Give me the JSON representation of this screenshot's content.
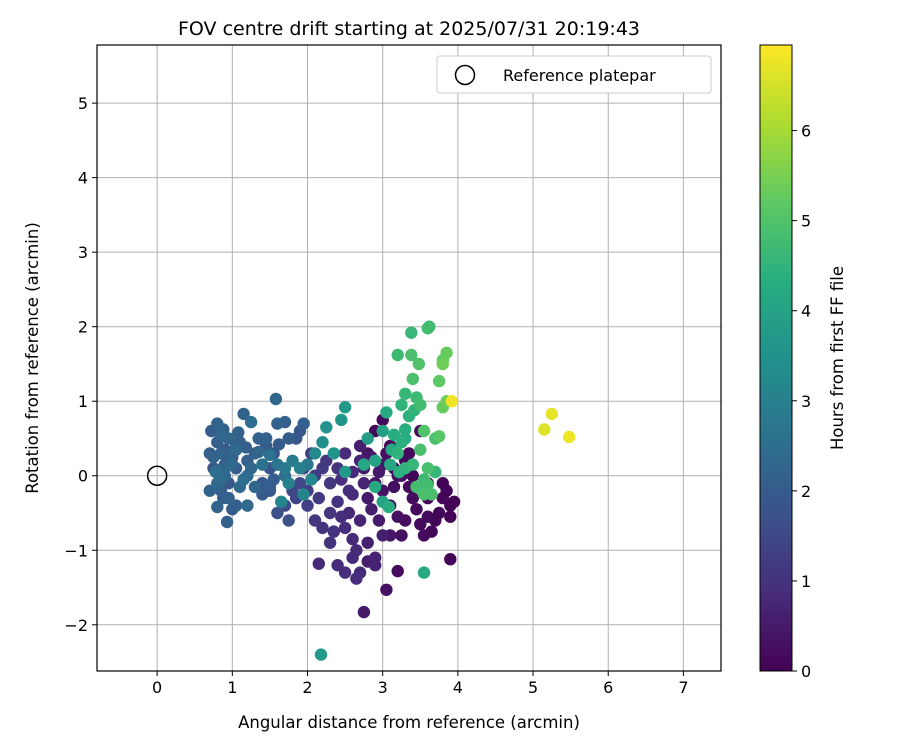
{
  "chart_data": {
    "type": "scatter",
    "title": "FOV centre drift starting at 2025/07/31 20:19:43",
    "xlabel": "Angular distance from reference (arcmin)",
    "ylabel": "Rotation from reference (arcmin)",
    "xlim": [
      -0.8,
      7.5
    ],
    "ylim": [
      -2.62,
      5.78
    ],
    "x_ticks": [
      0,
      1,
      2,
      3,
      4,
      5,
      6,
      7
    ],
    "y_ticks": [
      -2,
      -1,
      0,
      1,
      2,
      3,
      4,
      5
    ],
    "x_tick_labels": [
      "0",
      "1",
      "2",
      "3",
      "4",
      "5",
      "6",
      "7"
    ],
    "y_tick_labels": [
      "−2",
      "−1",
      "0",
      "1",
      "2",
      "3",
      "4",
      "5"
    ],
    "grid": true,
    "legend": {
      "placement": "top-right",
      "entries": [
        {
          "label": "Reference platepar",
          "marker": "open-circle"
        }
      ]
    },
    "reference_point": {
      "x": 0,
      "y": 0
    },
    "colorbar": {
      "label": "Hours from first FF file",
      "colormap": "viridis",
      "range": [
        0,
        6.95
      ],
      "ticks": [
        0,
        1,
        2,
        3,
        4,
        5,
        6
      ],
      "tick_labels": [
        "0",
        "1",
        "2",
        "3",
        "4",
        "5",
        "6"
      ]
    },
    "points": [
      [
        2.9,
        0.6,
        0.1
      ],
      [
        3.0,
        0.75,
        0.1
      ],
      [
        3.1,
        0.4,
        0.1
      ],
      [
        3.3,
        0.2,
        0.15
      ],
      [
        3.4,
        0.0,
        0.1
      ],
      [
        3.6,
        -0.1,
        0.1
      ],
      [
        3.8,
        -0.1,
        0.05
      ],
      [
        3.9,
        -0.4,
        0.05
      ],
      [
        3.9,
        -0.55,
        0.05
      ],
      [
        3.95,
        -0.35,
        0.05
      ],
      [
        3.8,
        -0.3,
        0.1
      ],
      [
        3.6,
        -0.55,
        0.15
      ],
      [
        3.5,
        -0.65,
        0.15
      ],
      [
        3.55,
        -0.8,
        0.2
      ],
      [
        3.9,
        -1.12,
        0.1
      ],
      [
        3.75,
        -0.5,
        0.1
      ],
      [
        3.7,
        -0.6,
        0.1
      ],
      [
        3.3,
        -0.6,
        0.25
      ],
      [
        3.2,
        -0.55,
        0.3
      ],
      [
        3.4,
        -0.3,
        0.2
      ],
      [
        3.1,
        -0.4,
        0.3
      ],
      [
        3.0,
        -0.2,
        0.35
      ],
      [
        3.2,
        0.0,
        0.3
      ],
      [
        3.35,
        0.3,
        0.15
      ],
      [
        3.05,
        0.3,
        0.3
      ],
      [
        2.8,
        0.3,
        0.4
      ],
      [
        2.75,
        0.1,
        0.5
      ],
      [
        2.9,
        -0.1,
        0.4
      ],
      [
        2.8,
        -0.3,
        0.5
      ],
      [
        2.95,
        -0.6,
        0.5
      ],
      [
        3.0,
        -0.8,
        0.6
      ],
      [
        2.8,
        -0.9,
        0.6
      ],
      [
        2.9,
        -1.2,
        0.7
      ],
      [
        3.2,
        -1.28,
        0.2
      ],
      [
        3.05,
        -1.53,
        0.3
      ],
      [
        2.75,
        -1.83,
        0.5
      ],
      [
        2.9,
        -1.1,
        0.7
      ],
      [
        2.7,
        -1.3,
        0.8
      ],
      [
        2.6,
        -1.1,
        0.8
      ],
      [
        2.5,
        -1.3,
        0.9
      ],
      [
        2.65,
        -1.38,
        0.9
      ],
      [
        2.4,
        -1.2,
        0.9
      ],
      [
        2.6,
        -0.85,
        0.8
      ],
      [
        2.5,
        -0.7,
        0.9
      ],
      [
        2.3,
        -0.9,
        1.0
      ],
      [
        2.2,
        -0.7,
        1.0
      ],
      [
        2.15,
        -1.18,
        0.8
      ],
      [
        2.3,
        -0.5,
        1.1
      ],
      [
        2.4,
        -0.35,
        1.0
      ],
      [
        2.55,
        -0.2,
        0.9
      ],
      [
        2.6,
        0.05,
        0.8
      ],
      [
        2.7,
        0.2,
        0.7
      ],
      [
        2.5,
        0.3,
        0.8
      ],
      [
        2.4,
        0.1,
        1.0
      ],
      [
        2.3,
        -0.1,
        1.1
      ],
      [
        2.15,
        -0.3,
        1.2
      ],
      [
        2.0,
        -0.2,
        1.3
      ],
      [
        2.1,
        0.0,
        1.2
      ],
      [
        2.2,
        0.1,
        1.2
      ],
      [
        2.05,
        0.3,
        1.3
      ],
      [
        1.95,
        0.1,
        1.4
      ],
      [
        1.9,
        -0.1,
        1.5
      ],
      [
        1.85,
        -0.3,
        1.4
      ],
      [
        2.1,
        -0.6,
        1.1
      ],
      [
        3.3,
        0.5,
        4.2
      ],
      [
        3.5,
        0.6,
        0.2
      ],
      [
        3.25,
        0.0,
        0.25
      ],
      [
        3.15,
        0.1,
        0.2
      ],
      [
        3.6,
        -0.3,
        0.1
      ],
      [
        3.45,
        -0.45,
        0.15
      ],
      [
        3.85,
        -0.2,
        0.1
      ],
      [
        3.65,
        -0.75,
        0.1
      ],
      [
        3.35,
        -0.15,
        0.2
      ],
      [
        3.0,
        0.15,
        0.4
      ],
      [
        2.85,
        -0.45,
        0.6
      ],
      [
        2.7,
        -0.6,
        0.7
      ],
      [
        2.55,
        -0.5,
        0.8
      ],
      [
        2.45,
        -0.05,
        0.9
      ],
      [
        2.25,
        0.2,
        1.1
      ],
      [
        2.7,
        0.4,
        0.6
      ],
      [
        2.85,
        0.25,
        0.5
      ],
      [
        3.1,
        -0.8,
        0.4
      ],
      [
        3.25,
        -0.8,
        0.3
      ],
      [
        2.65,
        -1.0,
        0.8
      ],
      [
        2.8,
        -1.15,
        0.6
      ],
      [
        2.35,
        -0.75,
        1.0
      ],
      [
        2.0,
        -0.4,
        1.3
      ],
      [
        2.45,
        -0.55,
        0.9
      ],
      [
        2.95,
        0.05,
        0.5
      ],
      [
        3.15,
        -0.15,
        0.3
      ],
      [
        2.6,
        -0.25,
        0.8
      ],
      [
        2.75,
        -0.1,
        0.7
      ],
      [
        1.8,
        -0.2,
        1.5
      ],
      [
        1.7,
        -0.4,
        1.6
      ],
      [
        1.75,
        -0.6,
        1.7
      ],
      [
        1.6,
        -0.5,
        1.7
      ],
      [
        1.5,
        -0.2,
        1.8
      ],
      [
        1.4,
        -0.1,
        1.9
      ],
      [
        1.5,
        0.1,
        1.8
      ],
      [
        1.55,
        0.3,
        1.9
      ],
      [
        1.45,
        0.4,
        2.0
      ],
      [
        1.3,
        0.3,
        2.1
      ],
      [
        1.2,
        0.2,
        2.1
      ],
      [
        1.35,
        0.5,
        2.2
      ],
      [
        1.25,
        0.72,
        2.5
      ],
      [
        1.15,
        0.83,
        2.2
      ],
      [
        1.6,
        0.7,
        2.2
      ],
      [
        1.7,
        0.72,
        2.1
      ],
      [
        1.58,
        1.03,
        2.3
      ],
      [
        1.75,
        0.5,
        2.0
      ],
      [
        1.9,
        0.6,
        1.9
      ],
      [
        1.95,
        0.7,
        2.1
      ],
      [
        1.05,
        0.4,
        2.1
      ],
      [
        1.0,
        0.3,
        2.2
      ],
      [
        0.95,
        0.2,
        2.2
      ],
      [
        0.9,
        0.1,
        2.3
      ],
      [
        0.85,
        0.3,
        2.2
      ],
      [
        0.8,
        0.45,
        2.1
      ],
      [
        0.75,
        0.25,
        2.2
      ],
      [
        0.7,
        0.3,
        2.1
      ],
      [
        0.8,
        0.7,
        2.2
      ],
      [
        0.85,
        0.55,
        2.3
      ],
      [
        0.95,
        0.5,
        2.3
      ],
      [
        1.05,
        0.35,
        2.4
      ],
      [
        1.0,
        0.15,
        2.4
      ],
      [
        0.9,
        0.0,
        2.3
      ],
      [
        0.8,
        -0.1,
        2.3
      ],
      [
        0.7,
        -0.2,
        2.2
      ],
      [
        0.85,
        -0.2,
        2.1
      ],
      [
        0.95,
        -0.3,
        2.2
      ],
      [
        1.05,
        -0.4,
        2.1
      ],
      [
        0.8,
        -0.42,
        2.2
      ],
      [
        0.93,
        -0.62,
        2.1
      ],
      [
        1.2,
        -0.4,
        2.4
      ],
      [
        1.1,
        -0.15,
        2.3
      ],
      [
        1.2,
        0.0,
        2.4
      ],
      [
        1.3,
        -0.15,
        2.3
      ],
      [
        1.4,
        -0.25,
        2.0
      ],
      [
        1.5,
        -0.15,
        2.1
      ],
      [
        1.1,
        0.45,
        2.0
      ],
      [
        1.0,
        0.25,
        1.8
      ],
      [
        0.9,
        0.35,
        1.9
      ],
      [
        0.75,
        0.1,
        1.9
      ],
      [
        0.9,
        0.15,
        2.0
      ],
      [
        1.05,
        0.1,
        2.0
      ],
      [
        0.95,
        -0.1,
        1.9
      ],
      [
        0.85,
        -0.05,
        2.4
      ],
      [
        0.78,
        0.05,
        2.5
      ],
      [
        1.15,
        -0.05,
        2.5
      ],
      [
        1.25,
        0.1,
        2.3
      ],
      [
        1.4,
        0.15,
        2.6
      ],
      [
        1.5,
        0.28,
        2.6
      ],
      [
        1.6,
        0.15,
        2.7
      ],
      [
        1.7,
        0.1,
        2.8
      ],
      [
        1.8,
        0.2,
        2.9
      ],
      [
        1.9,
        0.1,
        3.0
      ],
      [
        1.75,
        -0.1,
        3.0
      ],
      [
        1.65,
        -0.35,
        3.1
      ],
      [
        1.95,
        -0.25,
        3.1
      ],
      [
        2.05,
        -0.05,
        3.2
      ],
      [
        2.1,
        0.3,
        3.3
      ],
      [
        2.2,
        0.45,
        3.4
      ],
      [
        2.25,
        0.65,
        3.5
      ],
      [
        2.35,
        0.3,
        3.6
      ],
      [
        2.5,
        0.05,
        3.7
      ],
      [
        2.45,
        0.75,
        3.6
      ],
      [
        2.5,
        0.92,
        3.7
      ],
      [
        2.18,
        -2.4,
        3.7
      ],
      [
        1.45,
        0.5,
        2.2
      ],
      [
        1.35,
        0.32,
        2.3
      ],
      [
        0.72,
        0.6,
        2.0
      ],
      [
        0.88,
        0.62,
        2.1
      ],
      [
        1.08,
        0.58,
        2.2
      ],
      [
        1.18,
        0.38,
        2.1
      ],
      [
        1.0,
        -0.45,
        2.0
      ],
      [
        0.88,
        -0.3,
        2.0
      ],
      [
        1.55,
        -0.05,
        2.1
      ],
      [
        1.62,
        0.42,
        2.0
      ],
      [
        1.85,
        0.5,
        1.9
      ],
      [
        1.7,
        0.0,
        2.5
      ],
      [
        2.0,
        0.15,
        2.8
      ],
      [
        2.8,
        0.5,
        3.8
      ],
      [
        3.0,
        0.6,
        3.9
      ],
      [
        2.9,
        0.2,
        4.0
      ],
      [
        3.1,
        0.15,
        4.1
      ],
      [
        3.0,
        -0.35,
        4.0
      ],
      [
        2.75,
        0.15,
        4.1
      ],
      [
        2.9,
        -0.15,
        4.2
      ],
      [
        3.05,
        0.85,
        4.2
      ],
      [
        3.15,
        0.55,
        4.3
      ],
      [
        3.25,
        0.45,
        4.4
      ],
      [
        3.2,
        0.3,
        4.5
      ],
      [
        3.3,
        0.1,
        4.5
      ],
      [
        3.4,
        0.15,
        4.6
      ],
      [
        3.35,
        0.8,
        4.4
      ],
      [
        3.25,
        0.95,
        4.5
      ],
      [
        3.3,
        1.1,
        4.6
      ],
      [
        3.45,
        1.05,
        4.7
      ],
      [
        3.5,
        0.95,
        4.8
      ],
      [
        3.4,
        1.3,
        4.9
      ],
      [
        3.2,
        1.62,
        4.7
      ],
      [
        3.38,
        1.62,
        4.9
      ],
      [
        3.48,
        1.5,
        5.0
      ],
      [
        3.38,
        1.92,
        4.6
      ],
      [
        3.6,
        1.98,
        4.8
      ],
      [
        3.62,
        2.0,
        4.7
      ],
      [
        3.8,
        1.55,
        5.2
      ],
      [
        3.85,
        1.65,
        5.3
      ],
      [
        3.8,
        1.5,
        5.4
      ],
      [
        3.75,
        1.27,
        5.2
      ],
      [
        3.55,
        0.6,
        5.0
      ],
      [
        3.7,
        0.5,
        4.9
      ],
      [
        3.75,
        0.53,
        5.1
      ],
      [
        3.8,
        0.92,
        5.3
      ],
      [
        3.85,
        1.0,
        5.4
      ],
      [
        3.7,
        0.05,
        4.6
      ],
      [
        3.55,
        -0.05,
        4.7
      ],
      [
        3.45,
        -0.15,
        4.8
      ],
      [
        3.55,
        -0.25,
        4.9
      ],
      [
        3.65,
        -0.25,
        4.9
      ],
      [
        3.6,
        0.1,
        4.9
      ],
      [
        3.5,
        0.35,
        4.9
      ],
      [
        3.55,
        -1.3,
        4.2
      ],
      [
        3.08,
        -0.42,
        4.3
      ],
      [
        3.6,
        -0.12,
        4.8
      ],
      [
        3.3,
        0.62,
        4.3
      ],
      [
        3.42,
        0.88,
        4.5
      ],
      [
        3.92,
        1.0,
        6.8
      ],
      [
        5.15,
        0.62,
        6.6
      ],
      [
        5.25,
        0.83,
        6.7
      ],
      [
        5.48,
        0.52,
        6.8
      ],
      [
        3.12,
        0.35,
        4.2
      ],
      [
        3.22,
        0.05,
        4.4
      ]
    ]
  }
}
